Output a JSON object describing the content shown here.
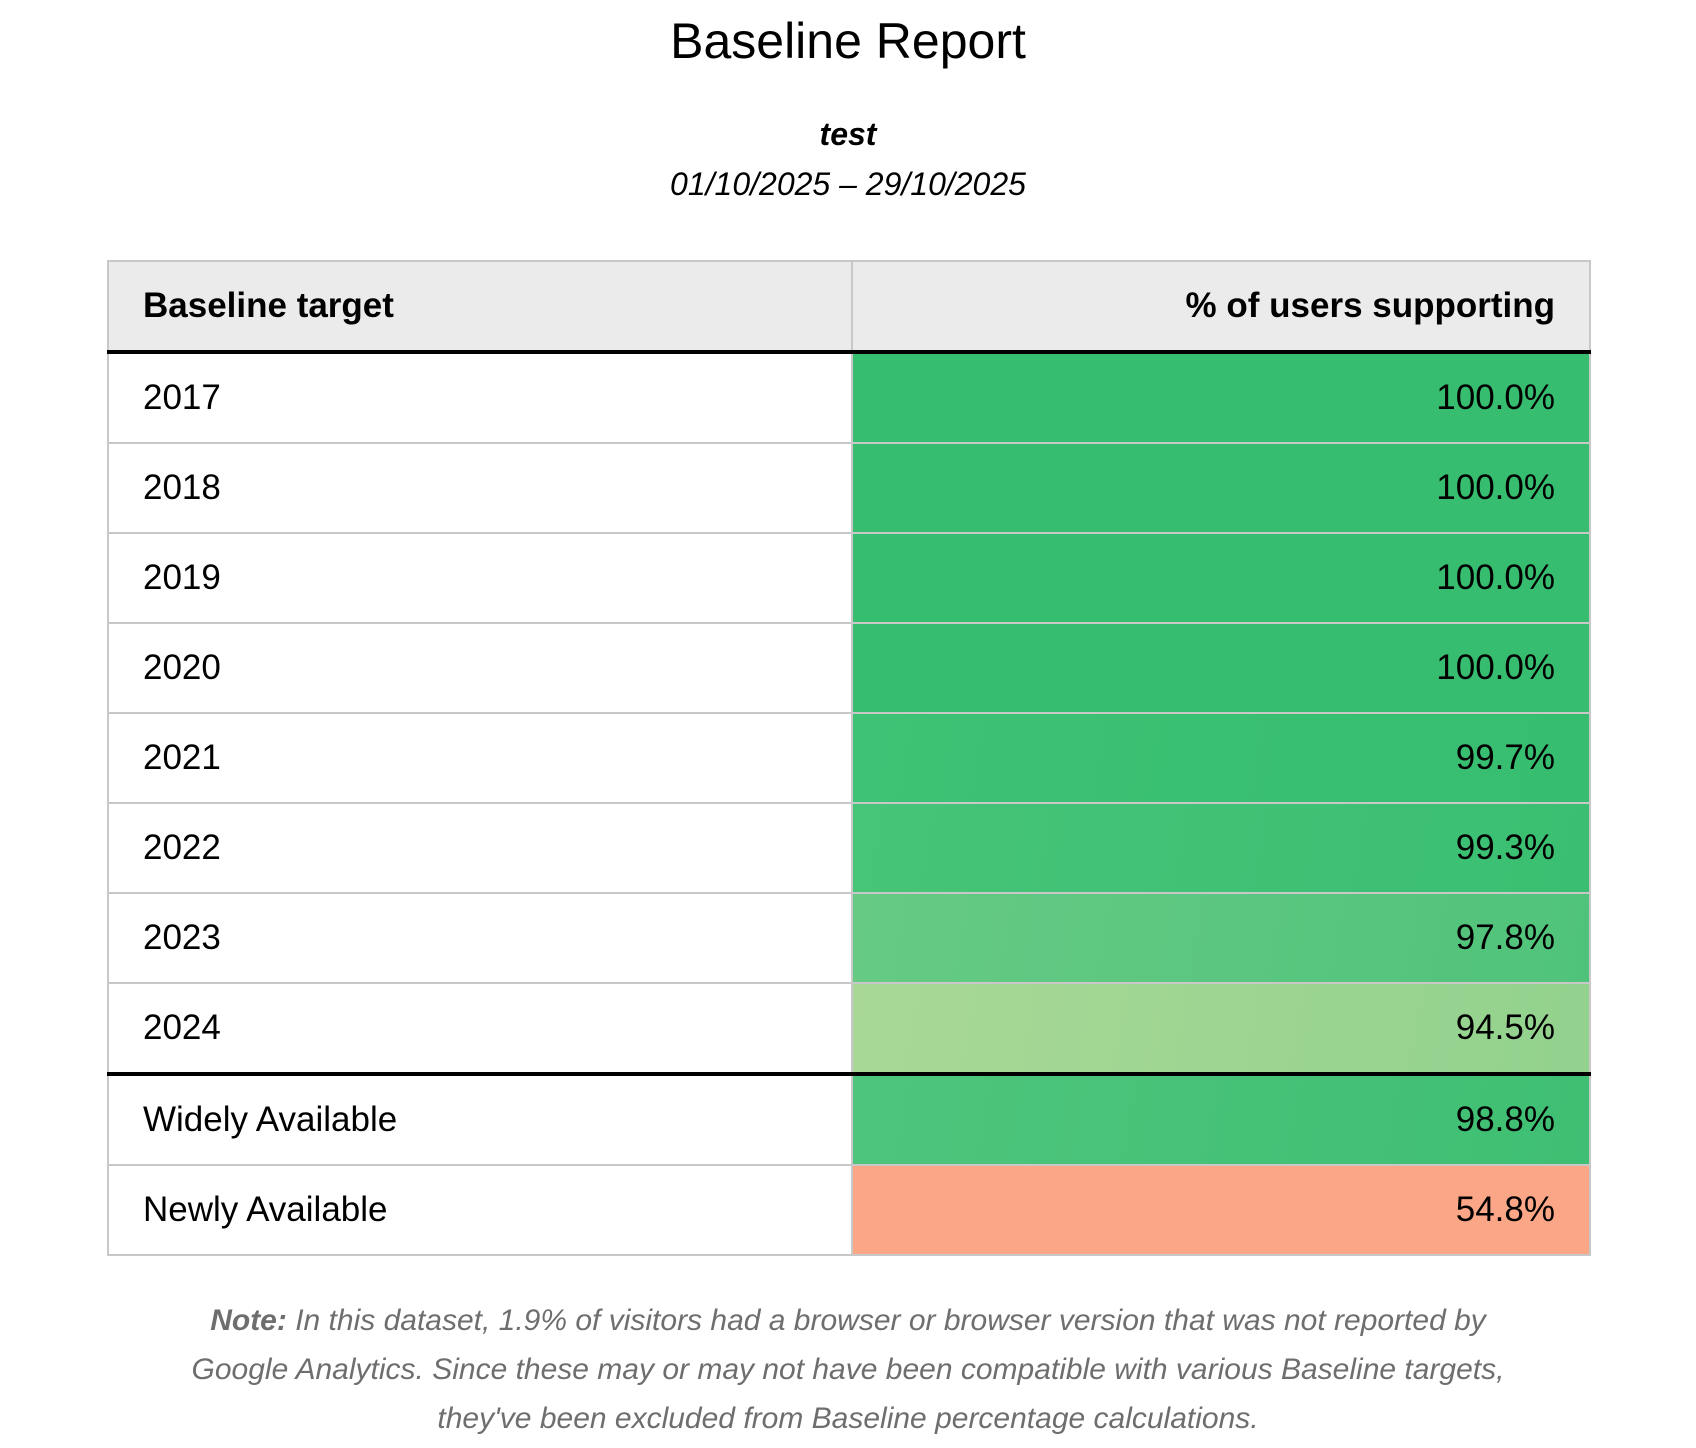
{
  "title": "Baseline Report",
  "subtitle": "test",
  "date_range": "01/10/2025 – 29/10/2025",
  "table": {
    "headers": [
      "Baseline target",
      "% of users supporting"
    ],
    "rows": [
      {
        "target": "2017",
        "value": "100.0%",
        "color": "#36bd6f",
        "color2": "#36bd6f"
      },
      {
        "target": "2018",
        "value": "100.0%",
        "color": "#36bd6f",
        "color2": "#36bd6f"
      },
      {
        "target": "2019",
        "value": "100.0%",
        "color": "#36bd6f",
        "color2": "#36bd6f"
      },
      {
        "target": "2020",
        "value": "100.0%",
        "color": "#36bd6f",
        "color2": "#36bd6f"
      },
      {
        "target": "2021",
        "value": "99.7%",
        "color": "#3ec275",
        "color2": "#36bd6f"
      },
      {
        "target": "2022",
        "value": "99.3%",
        "color": "#46c478",
        "color2": "#3abf72"
      },
      {
        "target": "2023",
        "value": "97.8%",
        "color": "#66ca84",
        "color2": "#50c37b"
      },
      {
        "target": "2024",
        "value": "94.5%",
        "color": "#a9d896",
        "color2": "#92d28e"
      },
      {
        "target": "Widely Available",
        "value": "98.8%",
        "color": "#4ec57c",
        "color2": "#3fbf73"
      },
      {
        "target": "Newly Available",
        "value": "54.8%",
        "color": "#fba686",
        "color2": "#fba686"
      }
    ]
  },
  "note": {
    "label": "Note:",
    "text": " In this dataset, 1.9% of visitors had a browser or browser version that was not reported by Google Analytics. Since these may or may not have been compatible with various Baseline targets, they've been excluded from Baseline percentage calculations."
  }
}
